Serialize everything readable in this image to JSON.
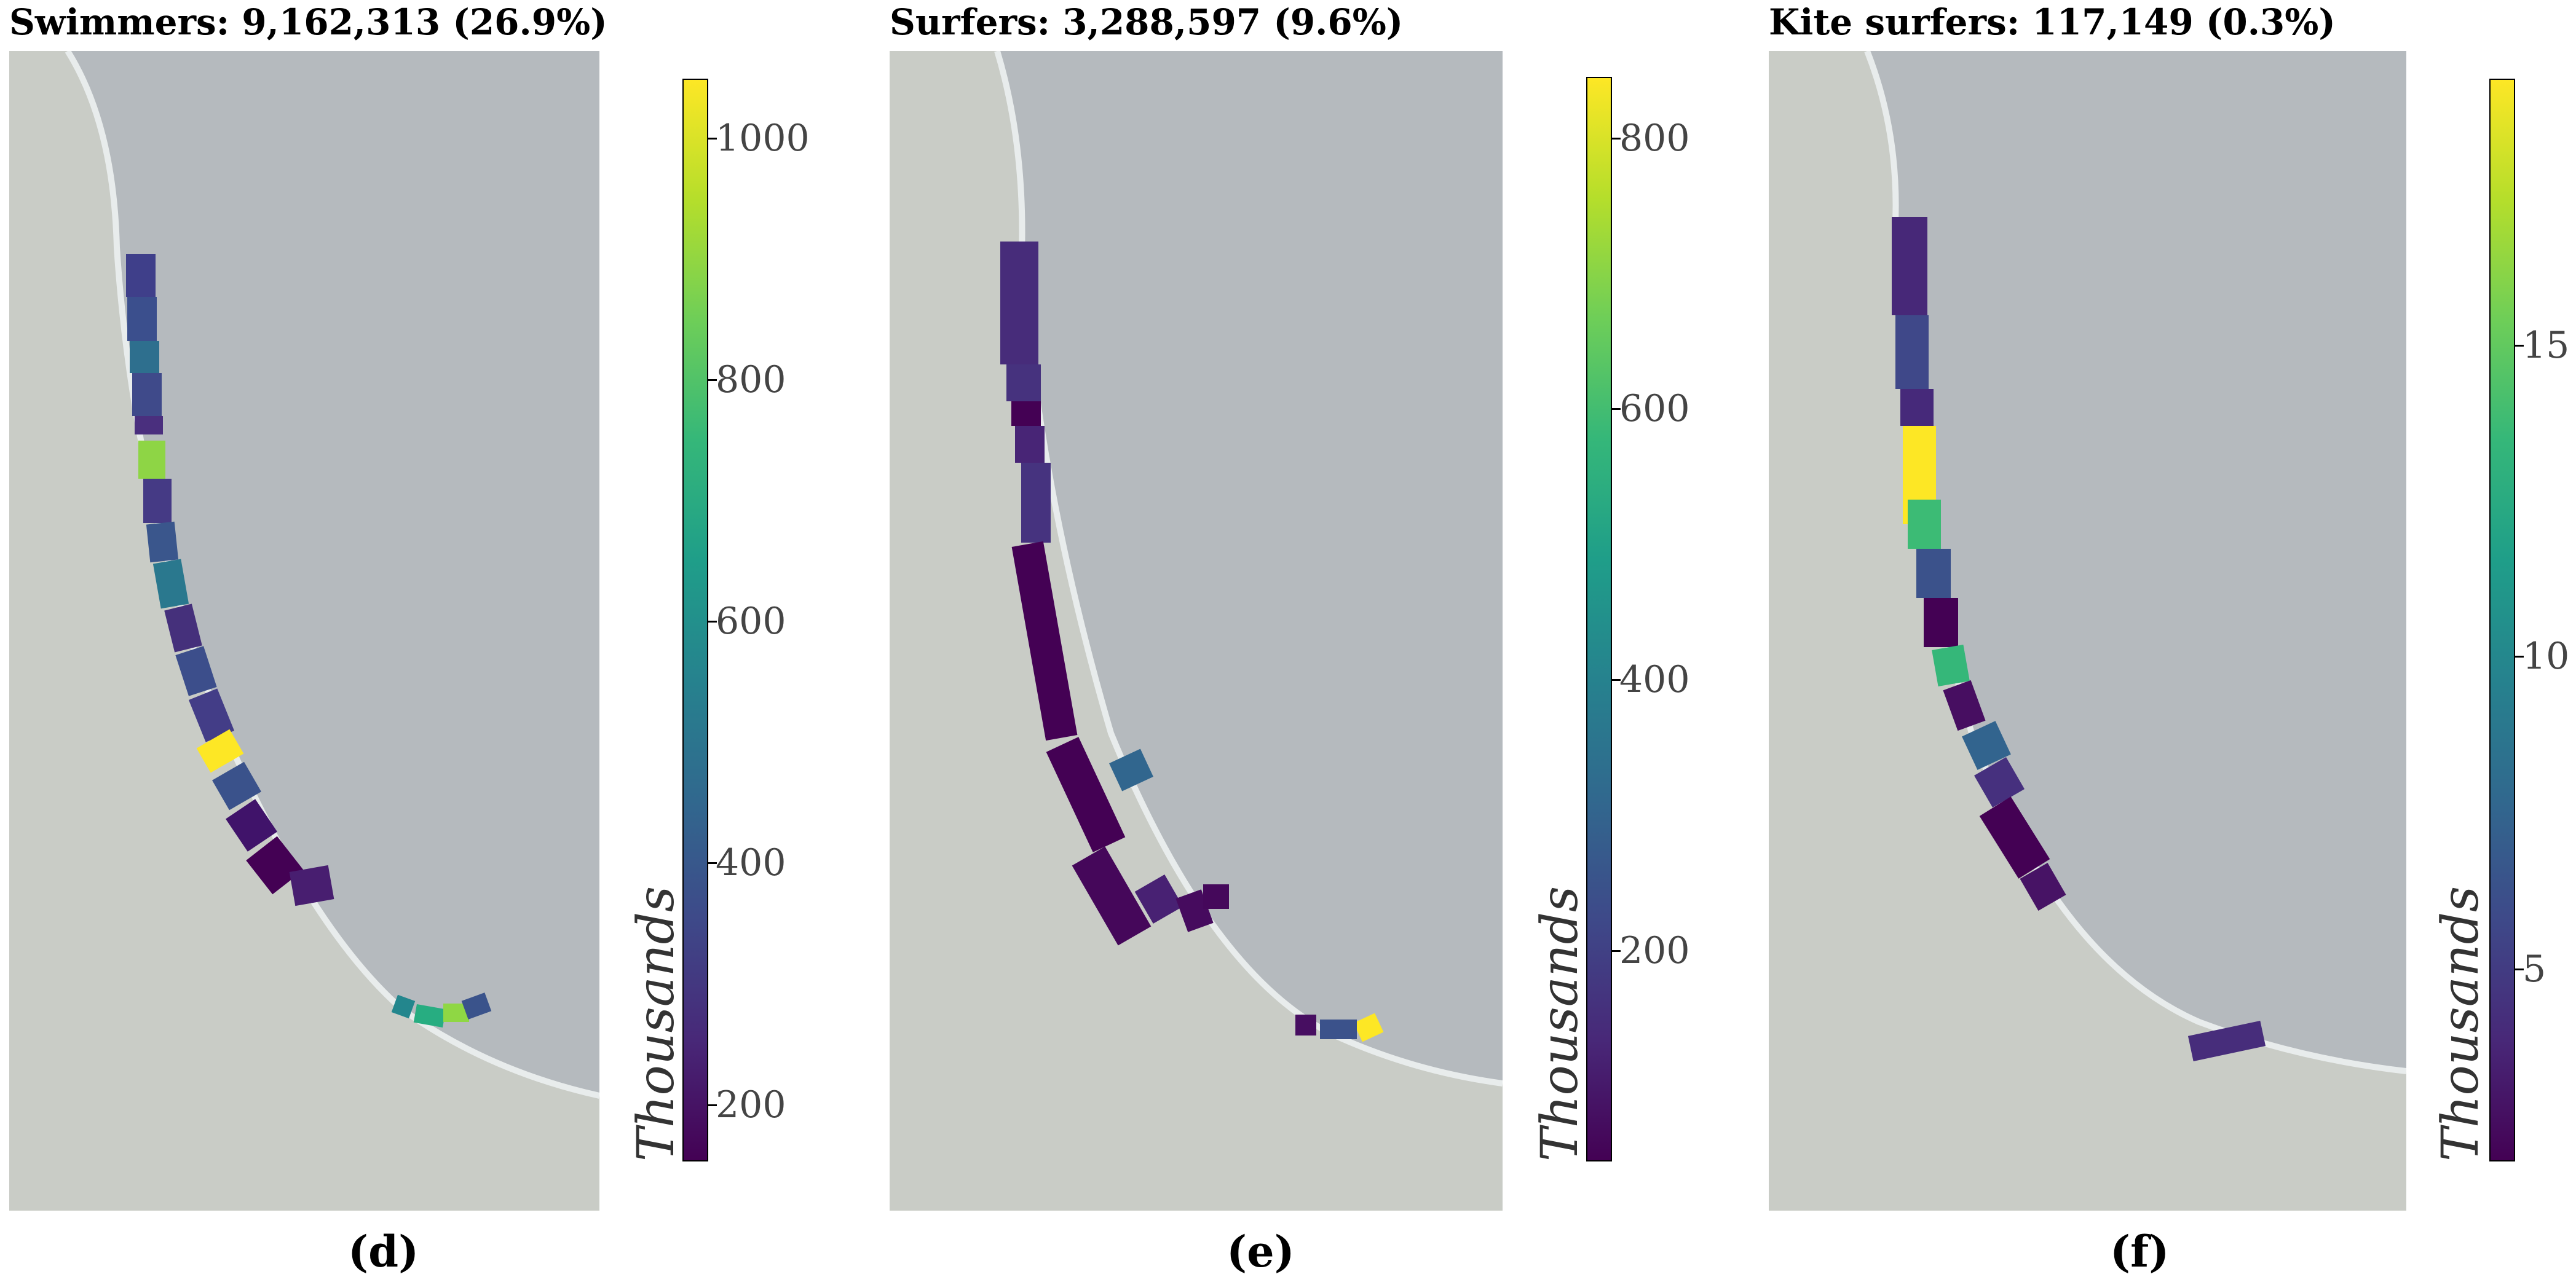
{
  "panels": [
    {
      "title": "Swimmers: 9,162,313 (26.9%)",
      "label": "(d)",
      "colorbar": {
        "unit": "Thousands",
        "ticks": [
          "200",
          "400",
          "600",
          "800",
          "1000"
        ]
      },
      "segment_colors": [
        "#3f3f8a",
        "#3b4f8d",
        "#2e6f8e",
        "#3f4a8a",
        "#4a2f7e",
        "#8ed545",
        "#453a85",
        "#3a568c",
        "#2a788e",
        "#45307b",
        "#3c4e8b",
        "#433d87",
        "#fde725",
        "#3a528b",
        "#40136a",
        "#440154",
        "#481e70",
        "#23868d",
        "#27ad81",
        "#8fd744",
        "#3a538b"
      ]
    },
    {
      "title": "Surfers: 3,288,597 (9.6%)",
      "label": "(e)",
      "colorbar": {
        "unit": "Thousands",
        "ticks": [
          "200",
          "400",
          "600",
          "800"
        ]
      },
      "segment_colors": [
        "#472c7a",
        "#46327e",
        "#440154",
        "#482576",
        "#46337f",
        "#440154",
        "#440154",
        "#45075a",
        "#31668e",
        "#482173",
        "#460b5e",
        "#45085b",
        "#fde725",
        "#470e61",
        "#3b528b"
      ]
    },
    {
      "title": "Kite surfers: 117,149 (0.3%)",
      "label": "(f)",
      "colorbar": {
        "unit": "Thousands",
        "ticks": [
          "5",
          "10",
          "15"
        ]
      },
      "segment_colors": [
        "#472878",
        "#3f4889",
        "#46297a",
        "#fde725",
        "#3cbb75",
        "#3b528b",
        "#440154",
        "#35b779",
        "#470e61",
        "#32648e",
        "#46307e",
        "#440154",
        "#471365",
        "#472d7b"
      ]
    }
  ],
  "colors": {
    "viridis": [
      "#440154",
      "#482878",
      "#3e4989",
      "#31688e",
      "#26828e",
      "#1f9e89",
      "#35b779",
      "#6ece58",
      "#b5de2b",
      "#fde725"
    ],
    "ocean": "#b5babe",
    "land": "#c9ccc6"
  }
}
